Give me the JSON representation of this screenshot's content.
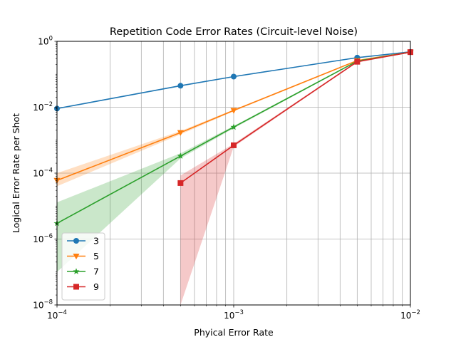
{
  "chart_data": {
    "type": "line",
    "title": "Repetition Code Error Rates (Circuit-level Noise)",
    "xlabel": "Phyical Error Rate",
    "ylabel": "Logical Error Rate per Shot",
    "xscale": "log",
    "yscale": "log",
    "xlim": [
      0.0001,
      0.01
    ],
    "ylim": [
      1e-08,
      1
    ],
    "grid": "both (major and minor)",
    "legend_position": "lower-left",
    "x_ticks": [
      {
        "value": 0.0001,
        "base": "10",
        "exp": "−4"
      },
      {
        "value": 0.001,
        "base": "10",
        "exp": "−3"
      },
      {
        "value": 0.01,
        "base": "10",
        "exp": "−2"
      }
    ],
    "y_ticks": [
      {
        "value": 1e-08,
        "base": "10",
        "exp": "−8"
      },
      {
        "value": 1e-06,
        "base": "10",
        "exp": "−6"
      },
      {
        "value": 0.0001,
        "base": "10",
        "exp": "−4"
      },
      {
        "value": 0.01,
        "base": "10",
        "exp": "−2"
      },
      {
        "value": 1,
        "base": "10",
        "exp": "0"
      }
    ],
    "series": [
      {
        "name": "3",
        "color": "#1f77b4",
        "marker": "circle",
        "x": [
          0.0001,
          0.0005,
          0.001,
          0.005,
          0.01
        ],
        "y": [
          0.0091,
          0.045,
          0.085,
          0.32,
          0.48
        ],
        "lower": [
          0.0087,
          0.043,
          0.082,
          0.31,
          0.46
        ],
        "upper": [
          0.0095,
          0.047,
          0.088,
          0.33,
          0.5
        ]
      },
      {
        "name": "5",
        "color": "#ff7f0e",
        "marker": "triangle-down",
        "x": [
          0.0001,
          0.0005,
          0.001,
          0.005,
          0.01
        ],
        "y": [
          6e-05,
          0.0017,
          0.008,
          0.26,
          0.47
        ],
        "lower": [
          4e-05,
          0.0015,
          0.0075,
          0.25,
          0.45
        ],
        "upper": [
          0.0001,
          0.0019,
          0.0085,
          0.27,
          0.49
        ]
      },
      {
        "name": "7",
        "color": "#2ca02c",
        "marker": "star",
        "x": [
          0.0001,
          0.0005,
          0.001,
          0.005,
          0.01
        ],
        "y": [
          3e-06,
          0.00033,
          0.0025,
          0.25,
          0.47
        ],
        "lower": [
          1e-07,
          0.00028,
          0.0023,
          0.24,
          0.45
        ],
        "upper": [
          1.3e-05,
          0.0004,
          0.0027,
          0.26,
          0.49
        ]
      },
      {
        "name": "9",
        "color": "#d62728",
        "marker": "square",
        "x": [
          0.0005,
          0.001,
          0.005,
          0.01
        ],
        "y": [
          5e-05,
          0.0007,
          0.24,
          0.47
        ],
        "lower": [
          1e-08,
          0.00063,
          0.23,
          0.45
        ],
        "upper": [
          8.5e-05,
          0.00078,
          0.25,
          0.49
        ]
      }
    ]
  }
}
